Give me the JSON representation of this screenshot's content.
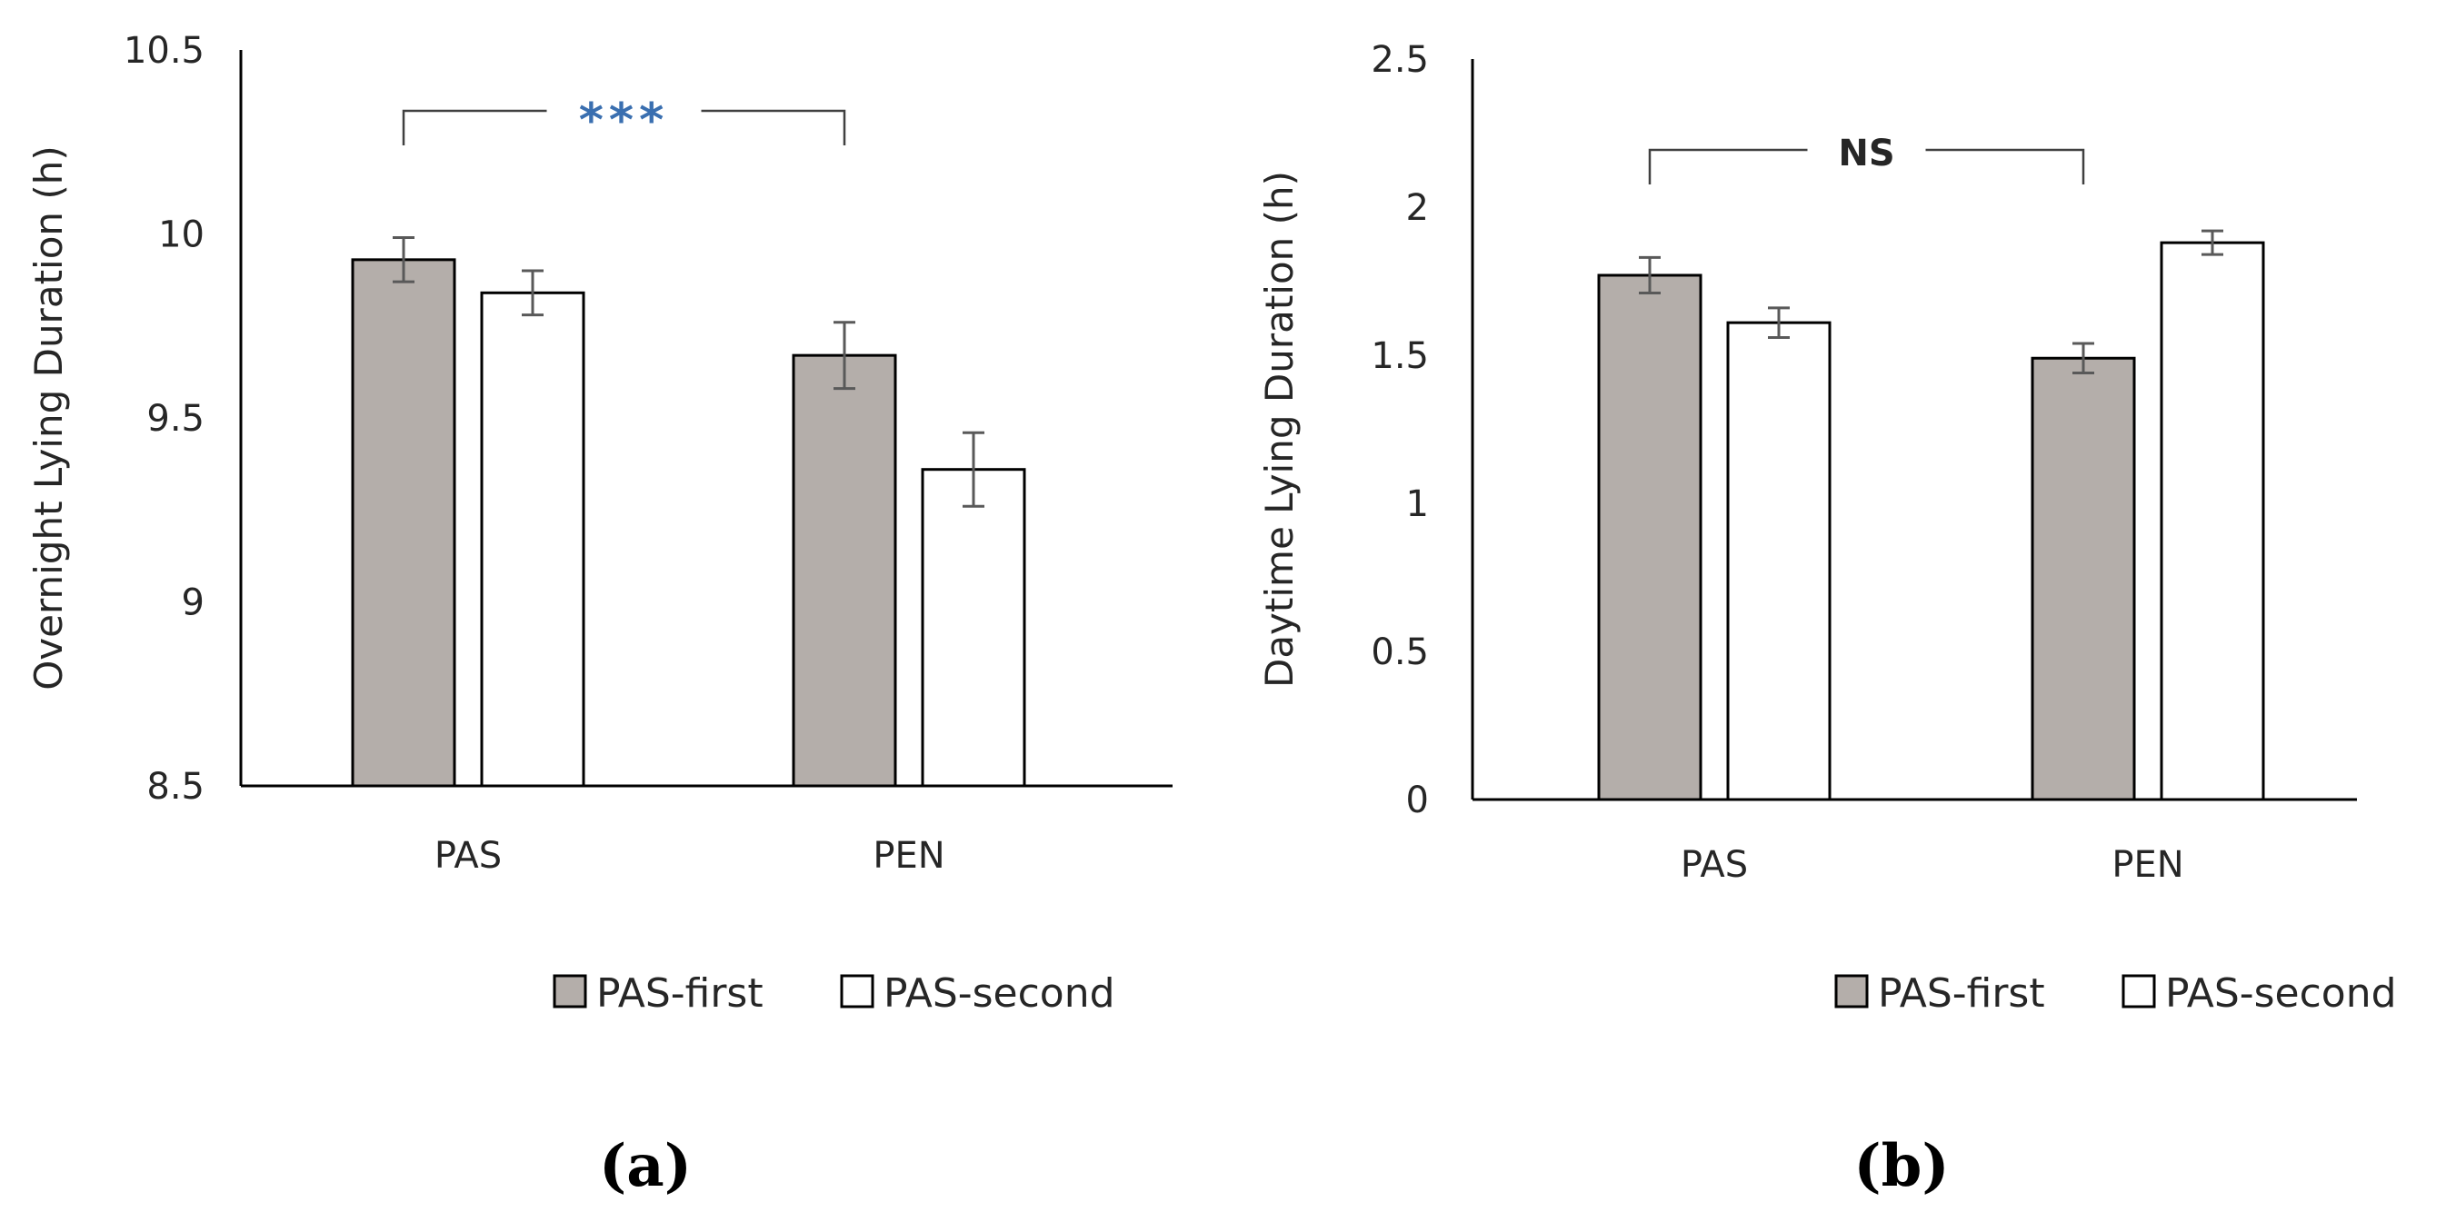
{
  "colors": {
    "first_fill": "#b4aeaa",
    "second_fill": "#ffffff",
    "bar_stroke": "#000000",
    "axis": "#000000",
    "errorbar": "#595959",
    "text": "#262626"
  },
  "chart_data": [
    {
      "type": "bar",
      "panel_label": "(a)",
      "title": "",
      "xlabel": "",
      "ylabel": "Overnight Lying Duration (h)",
      "ylim": [
        8.5,
        10.5
      ],
      "yticks": [
        "8.5",
        "9",
        "9.5",
        "10",
        "10.5"
      ],
      "categories": [
        "PAS",
        "PEN"
      ],
      "series": [
        {
          "name": "PAS-first",
          "values": [
            9.93,
            9.67
          ],
          "errors": [
            0.06,
            0.09
          ]
        },
        {
          "name": "PAS-second",
          "values": [
            9.84,
            9.36
          ],
          "errors": [
            0.06,
            0.1
          ]
        }
      ],
      "significance": {
        "label": "***",
        "between": [
          "PAS",
          "PEN"
        ]
      },
      "legend": [
        "PAS-first",
        "PAS-second"
      ],
      "legend_position": "bottom"
    },
    {
      "type": "bar",
      "panel_label": "(b)",
      "title": "",
      "xlabel": "",
      "ylabel": "Daytime Lying Duration (h)",
      "ylim": [
        0,
        2.5
      ],
      "yticks": [
        "0",
        "0.5",
        "1",
        "1.5",
        "2",
        "2.5"
      ],
      "categories": [
        "PAS",
        "PEN"
      ],
      "series": [
        {
          "name": "PAS-first",
          "values": [
            1.77,
            1.49
          ],
          "errors": [
            0.06,
            0.05
          ]
        },
        {
          "name": "PAS-second",
          "values": [
            1.61,
            1.88
          ],
          "errors": [
            0.05,
            0.04
          ]
        }
      ],
      "significance": {
        "label": "NS",
        "between": [
          "PAS",
          "PEN"
        ]
      },
      "legend": [
        "PAS-first",
        "PAS-second"
      ],
      "legend_position": "bottom"
    }
  ]
}
